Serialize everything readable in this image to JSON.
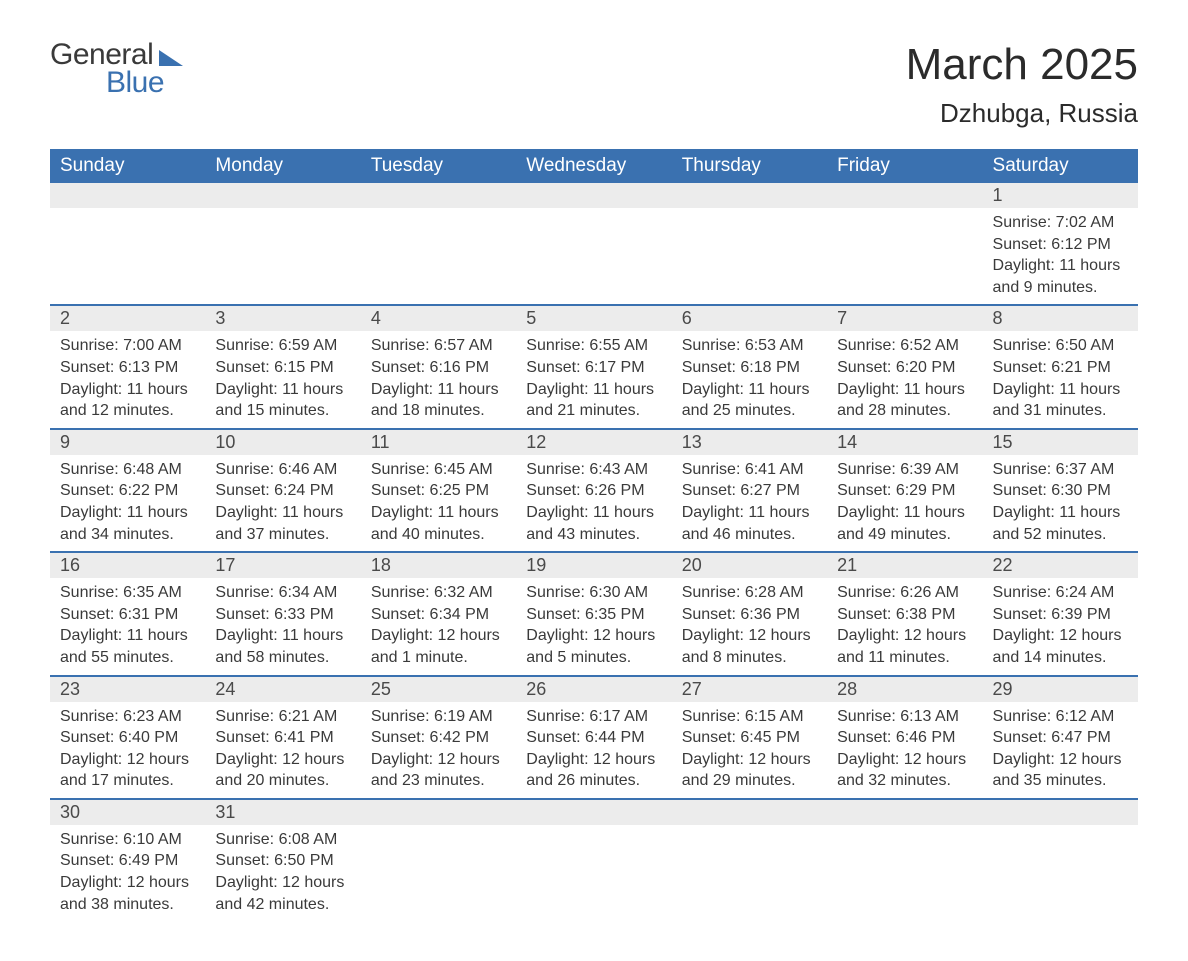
{
  "brand": {
    "general": "General",
    "blue": "Blue"
  },
  "title": "March 2025",
  "location": "Dzhubga, Russia",
  "colors": {
    "header_bg": "#3a71b0",
    "header_text": "#ffffff",
    "daynum_bg": "#ececec",
    "row_border": "#3a71b0",
    "text": "#3a3a3a",
    "page_bg": "#ffffff"
  },
  "typography": {
    "title_fontsize": 44,
    "location_fontsize": 26,
    "dayheader_fontsize": 19,
    "cell_fontsize": 16
  },
  "calendar": {
    "type": "table",
    "columns": [
      "Sunday",
      "Monday",
      "Tuesday",
      "Wednesday",
      "Thursday",
      "Friday",
      "Saturday"
    ],
    "weeks": [
      [
        null,
        null,
        null,
        null,
        null,
        null,
        {
          "day": "1",
          "sunrise": "Sunrise: 7:02 AM",
          "sunset": "Sunset: 6:12 PM",
          "daylight1": "Daylight: 11 hours",
          "daylight2": "and 9 minutes."
        }
      ],
      [
        {
          "day": "2",
          "sunrise": "Sunrise: 7:00 AM",
          "sunset": "Sunset: 6:13 PM",
          "daylight1": "Daylight: 11 hours",
          "daylight2": "and 12 minutes."
        },
        {
          "day": "3",
          "sunrise": "Sunrise: 6:59 AM",
          "sunset": "Sunset: 6:15 PM",
          "daylight1": "Daylight: 11 hours",
          "daylight2": "and 15 minutes."
        },
        {
          "day": "4",
          "sunrise": "Sunrise: 6:57 AM",
          "sunset": "Sunset: 6:16 PM",
          "daylight1": "Daylight: 11 hours",
          "daylight2": "and 18 minutes."
        },
        {
          "day": "5",
          "sunrise": "Sunrise: 6:55 AM",
          "sunset": "Sunset: 6:17 PM",
          "daylight1": "Daylight: 11 hours",
          "daylight2": "and 21 minutes."
        },
        {
          "day": "6",
          "sunrise": "Sunrise: 6:53 AM",
          "sunset": "Sunset: 6:18 PM",
          "daylight1": "Daylight: 11 hours",
          "daylight2": "and 25 minutes."
        },
        {
          "day": "7",
          "sunrise": "Sunrise: 6:52 AM",
          "sunset": "Sunset: 6:20 PM",
          "daylight1": "Daylight: 11 hours",
          "daylight2": "and 28 minutes."
        },
        {
          "day": "8",
          "sunrise": "Sunrise: 6:50 AM",
          "sunset": "Sunset: 6:21 PM",
          "daylight1": "Daylight: 11 hours",
          "daylight2": "and 31 minutes."
        }
      ],
      [
        {
          "day": "9",
          "sunrise": "Sunrise: 6:48 AM",
          "sunset": "Sunset: 6:22 PM",
          "daylight1": "Daylight: 11 hours",
          "daylight2": "and 34 minutes."
        },
        {
          "day": "10",
          "sunrise": "Sunrise: 6:46 AM",
          "sunset": "Sunset: 6:24 PM",
          "daylight1": "Daylight: 11 hours",
          "daylight2": "and 37 minutes."
        },
        {
          "day": "11",
          "sunrise": "Sunrise: 6:45 AM",
          "sunset": "Sunset: 6:25 PM",
          "daylight1": "Daylight: 11 hours",
          "daylight2": "and 40 minutes."
        },
        {
          "day": "12",
          "sunrise": "Sunrise: 6:43 AM",
          "sunset": "Sunset: 6:26 PM",
          "daylight1": "Daylight: 11 hours",
          "daylight2": "and 43 minutes."
        },
        {
          "day": "13",
          "sunrise": "Sunrise: 6:41 AM",
          "sunset": "Sunset: 6:27 PM",
          "daylight1": "Daylight: 11 hours",
          "daylight2": "and 46 minutes."
        },
        {
          "day": "14",
          "sunrise": "Sunrise: 6:39 AM",
          "sunset": "Sunset: 6:29 PM",
          "daylight1": "Daylight: 11 hours",
          "daylight2": "and 49 minutes."
        },
        {
          "day": "15",
          "sunrise": "Sunrise: 6:37 AM",
          "sunset": "Sunset: 6:30 PM",
          "daylight1": "Daylight: 11 hours",
          "daylight2": "and 52 minutes."
        }
      ],
      [
        {
          "day": "16",
          "sunrise": "Sunrise: 6:35 AM",
          "sunset": "Sunset: 6:31 PM",
          "daylight1": "Daylight: 11 hours",
          "daylight2": "and 55 minutes."
        },
        {
          "day": "17",
          "sunrise": "Sunrise: 6:34 AM",
          "sunset": "Sunset: 6:33 PM",
          "daylight1": "Daylight: 11 hours",
          "daylight2": "and 58 minutes."
        },
        {
          "day": "18",
          "sunrise": "Sunrise: 6:32 AM",
          "sunset": "Sunset: 6:34 PM",
          "daylight1": "Daylight: 12 hours",
          "daylight2": "and 1 minute."
        },
        {
          "day": "19",
          "sunrise": "Sunrise: 6:30 AM",
          "sunset": "Sunset: 6:35 PM",
          "daylight1": "Daylight: 12 hours",
          "daylight2": "and 5 minutes."
        },
        {
          "day": "20",
          "sunrise": "Sunrise: 6:28 AM",
          "sunset": "Sunset: 6:36 PM",
          "daylight1": "Daylight: 12 hours",
          "daylight2": "and 8 minutes."
        },
        {
          "day": "21",
          "sunrise": "Sunrise: 6:26 AM",
          "sunset": "Sunset: 6:38 PM",
          "daylight1": "Daylight: 12 hours",
          "daylight2": "and 11 minutes."
        },
        {
          "day": "22",
          "sunrise": "Sunrise: 6:24 AM",
          "sunset": "Sunset: 6:39 PM",
          "daylight1": "Daylight: 12 hours",
          "daylight2": "and 14 minutes."
        }
      ],
      [
        {
          "day": "23",
          "sunrise": "Sunrise: 6:23 AM",
          "sunset": "Sunset: 6:40 PM",
          "daylight1": "Daylight: 12 hours",
          "daylight2": "and 17 minutes."
        },
        {
          "day": "24",
          "sunrise": "Sunrise: 6:21 AM",
          "sunset": "Sunset: 6:41 PM",
          "daylight1": "Daylight: 12 hours",
          "daylight2": "and 20 minutes."
        },
        {
          "day": "25",
          "sunrise": "Sunrise: 6:19 AM",
          "sunset": "Sunset: 6:42 PM",
          "daylight1": "Daylight: 12 hours",
          "daylight2": "and 23 minutes."
        },
        {
          "day": "26",
          "sunrise": "Sunrise: 6:17 AM",
          "sunset": "Sunset: 6:44 PM",
          "daylight1": "Daylight: 12 hours",
          "daylight2": "and 26 minutes."
        },
        {
          "day": "27",
          "sunrise": "Sunrise: 6:15 AM",
          "sunset": "Sunset: 6:45 PM",
          "daylight1": "Daylight: 12 hours",
          "daylight2": "and 29 minutes."
        },
        {
          "day": "28",
          "sunrise": "Sunrise: 6:13 AM",
          "sunset": "Sunset: 6:46 PM",
          "daylight1": "Daylight: 12 hours",
          "daylight2": "and 32 minutes."
        },
        {
          "day": "29",
          "sunrise": "Sunrise: 6:12 AM",
          "sunset": "Sunset: 6:47 PM",
          "daylight1": "Daylight: 12 hours",
          "daylight2": "and 35 minutes."
        }
      ],
      [
        {
          "day": "30",
          "sunrise": "Sunrise: 6:10 AM",
          "sunset": "Sunset: 6:49 PM",
          "daylight1": "Daylight: 12 hours",
          "daylight2": "and 38 minutes."
        },
        {
          "day": "31",
          "sunrise": "Sunrise: 6:08 AM",
          "sunset": "Sunset: 6:50 PM",
          "daylight1": "Daylight: 12 hours",
          "daylight2": "and 42 minutes."
        },
        null,
        null,
        null,
        null,
        null
      ]
    ]
  }
}
